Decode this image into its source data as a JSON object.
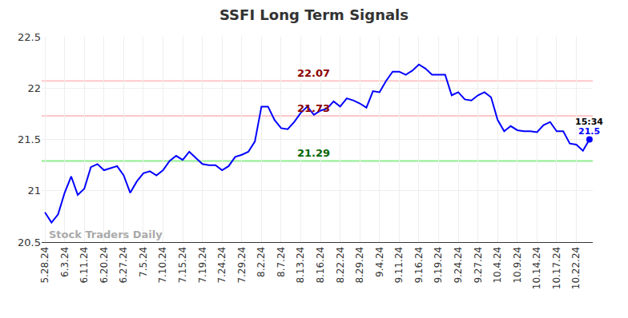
{
  "chart_data": {
    "type": "line",
    "title": "SSFI Long Term Signals",
    "categories": [
      "5.28.24",
      null,
      null,
      "6.3.24",
      null,
      null,
      "6.11.24",
      null,
      null,
      "6.20.24",
      null,
      null,
      "6.27.24",
      null,
      null,
      "7.5.24",
      null,
      null,
      "7.10.24",
      null,
      null,
      "7.15.24",
      null,
      null,
      "7.19.24",
      null,
      null,
      "7.24.24",
      null,
      null,
      "7.29.24",
      null,
      null,
      "8.2.24",
      null,
      null,
      "8.7.24",
      null,
      null,
      "8.13.24",
      null,
      null,
      "8.16.24",
      null,
      null,
      "8.22.24",
      null,
      null,
      "8.29.24",
      null,
      null,
      "9.4.24",
      null,
      null,
      "9.11.24",
      null,
      null,
      "9.16.24",
      null,
      null,
      "9.19.24",
      null,
      null,
      "9.24.24",
      null,
      null,
      "9.27.24",
      null,
      null,
      "10.4.24",
      null,
      null,
      "10.9.24",
      null,
      null,
      "10.14.24",
      null,
      null,
      "10.17.24",
      null,
      null,
      "10.22.24",
      null,
      null
    ],
    "values": [
      20.79,
      20.69,
      20.77,
      20.98,
      21.14,
      20.96,
      21.02,
      21.23,
      21.26,
      21.2,
      21.22,
      21.24,
      21.15,
      20.98,
      21.09,
      21.17,
      21.19,
      21.15,
      21.2,
      21.29,
      21.34,
      21.3,
      21.38,
      21.32,
      21.26,
      21.25,
      21.25,
      21.2,
      21.24,
      21.33,
      21.35,
      21.38,
      21.48,
      21.82,
      21.82,
      21.69,
      21.61,
      21.6,
      21.67,
      21.76,
      21.82,
      21.74,
      21.78,
      21.8,
      21.87,
      21.82,
      21.9,
      21.88,
      21.85,
      21.81,
      21.97,
      21.96,
      22.07,
      22.16,
      22.16,
      22.13,
      22.17,
      22.23,
      22.19,
      22.13,
      22.13,
      22.13,
      21.93,
      21.96,
      21.89,
      21.88,
      21.93,
      21.96,
      21.91,
      21.69,
      21.58,
      21.63,
      21.59,
      21.58,
      21.58,
      21.57,
      21.64,
      21.67,
      21.58,
      21.58,
      21.46,
      21.45,
      21.39,
      21.5
    ],
    "color": "#0000ff",
    "ylim": [
      20.5,
      22.5
    ],
    "yticks": [
      20.5,
      21,
      21.5,
      22,
      22.5
    ],
    "grid": true,
    "signal_lines": [
      {
        "value": 22.07,
        "color": "#ffc8c8",
        "label_color": "#8b0000"
      },
      {
        "value": 21.73,
        "color": "#ffc8c8",
        "label_color": "#8b0000"
      },
      {
        "value": 21.29,
        "color": "#90ee90",
        "label_color": "#006400"
      }
    ],
    "last_point_label": "15:34",
    "watermark": "Stock Traders Daily"
  }
}
